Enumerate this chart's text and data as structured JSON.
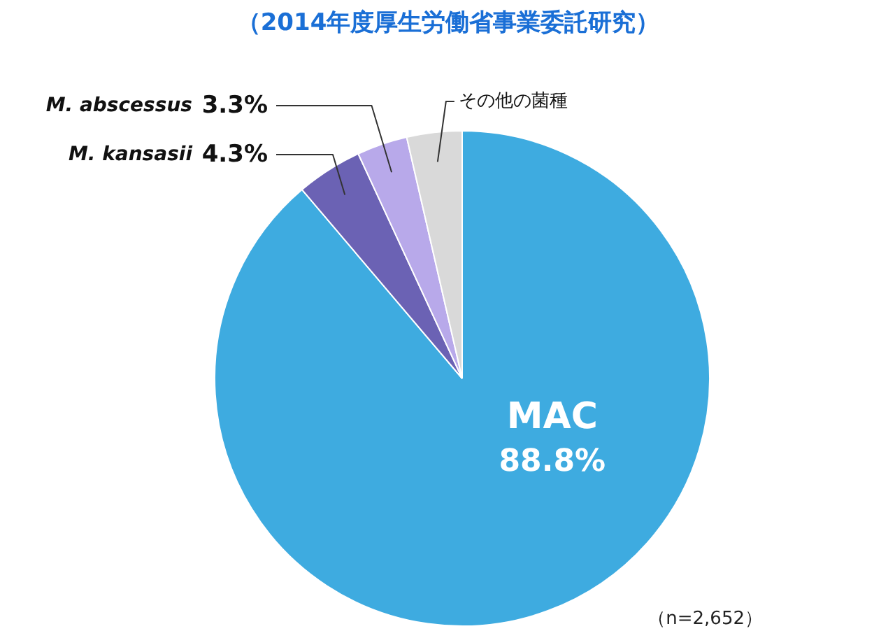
{
  "chart_data": {
    "type": "pie",
    "title": "（2014年度厚生労働省事業委託研究）",
    "categories": [
      "MAC",
      "M. kansasii",
      "M. abscessus",
      "その他の菌種"
    ],
    "values": [
      88.8,
      4.3,
      3.3,
      3.6
    ],
    "colors": [
      "#3eabe0",
      "#6b62b4",
      "#b8a9ea",
      "#d9d9d9"
    ],
    "value_labels": [
      "88.8%",
      "4.3%",
      "3.3%",
      null
    ],
    "annotations": [
      "（n=2,652）"
    ]
  }
}
